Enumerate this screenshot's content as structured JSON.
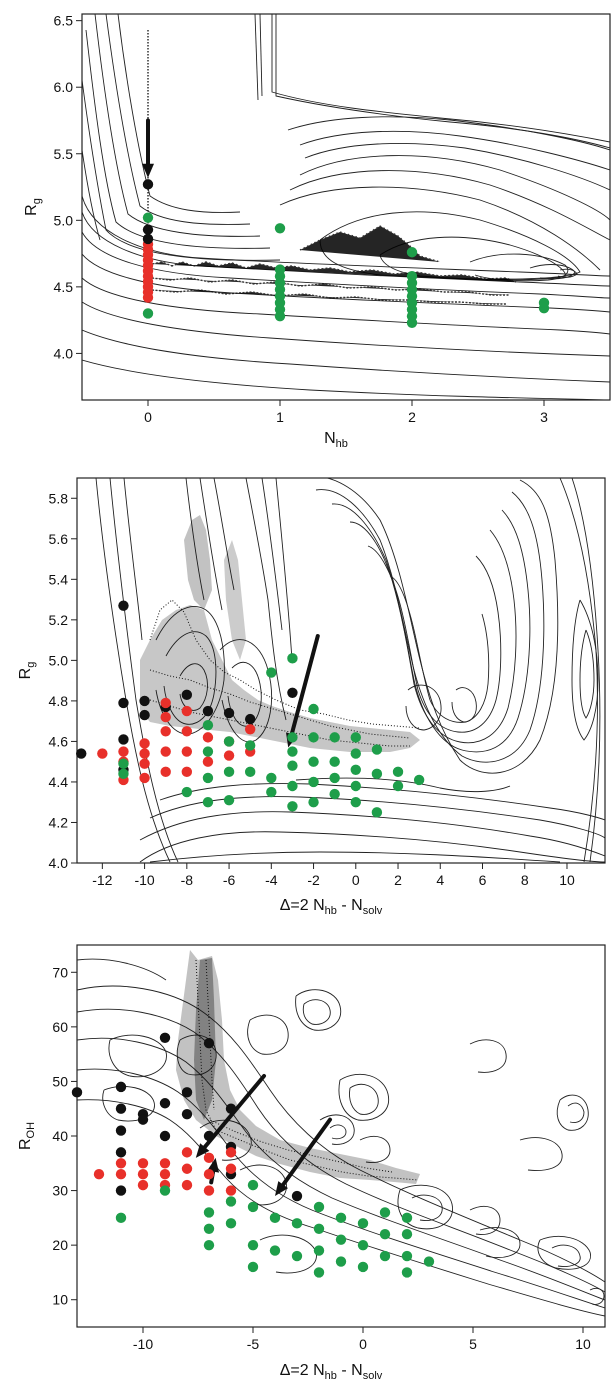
{
  "chart_data": [
    {
      "type": "scatter",
      "xlabel": "N",
      "xlabel_sub": "hb",
      "ylabel": "R",
      "ylabel_sub": "g",
      "xlim": [
        -0.5,
        3.5
      ],
      "ylim": [
        3.65,
        6.55
      ],
      "xticks": [
        0,
        1,
        2,
        3
      ],
      "yticks": [
        4.0,
        4.5,
        5.0,
        5.5,
        6.0,
        6.5
      ],
      "ytick_decimals": 1,
      "contours": "free-energy contour lines",
      "series": [
        {
          "color": "#e8302a",
          "points": [
            [
              0,
              4.42
            ],
            [
              0,
              4.46
            ],
            [
              0,
              4.5
            ],
            [
              0,
              4.54
            ],
            [
              0,
              4.58
            ],
            [
              0,
              4.62
            ],
            [
              0,
              4.66
            ],
            [
              0,
              4.7
            ],
            [
              0,
              4.74
            ],
            [
              0,
              4.78
            ],
            [
              0,
              4.82
            ]
          ]
        },
        {
          "color": "#1e9e4a",
          "points": [
            [
              0,
              5.02
            ],
            [
              0,
              4.3
            ],
            [
              1,
              4.94
            ],
            [
              1,
              4.28
            ],
            [
              1,
              4.33
            ],
            [
              1,
              4.38
            ],
            [
              1,
              4.43
            ],
            [
              1,
              4.48
            ],
            [
              1,
              4.53
            ],
            [
              1,
              4.58
            ],
            [
              1,
              4.63
            ],
            [
              2,
              4.76
            ],
            [
              2,
              4.23
            ],
            [
              2,
              4.28
            ],
            [
              2,
              4.33
            ],
            [
              2,
              4.38
            ],
            [
              2,
              4.43
            ],
            [
              2,
              4.48
            ],
            [
              2,
              4.53
            ],
            [
              2,
              4.58
            ],
            [
              3,
              4.34
            ],
            [
              3,
              4.38
            ]
          ]
        },
        {
          "color": "#111111",
          "points": [
            [
              0,
              5.27
            ],
            [
              0,
              4.93
            ],
            [
              0,
              4.86
            ]
          ]
        }
      ],
      "arrows": [
        {
          "from": [
            0,
            5.75
          ],
          "to": [
            0,
            5.32
          ]
        }
      ]
    },
    {
      "type": "scatter",
      "xlabel": "Δ=2  N",
      "xlabel_sub": "hb",
      "xlabel_mid": " - N",
      "xlabel_sub2": "solv",
      "ylabel": "R",
      "ylabel_sub": "g",
      "xlim": [
        -13.2,
        11.8
      ],
      "ylim": [
        4.0,
        5.9
      ],
      "xticks": [
        -12,
        -10,
        -8,
        -6,
        -4,
        -2,
        0,
        2,
        4,
        6,
        8,
        10
      ],
      "yticks": [
        4.0,
        4.2,
        4.4,
        4.6,
        4.8,
        5.0,
        5.2,
        5.4,
        5.6,
        5.8
      ],
      "ytick_decimals": 1,
      "contours": "free-energy contour lines",
      "series": [
        {
          "color": "#111111",
          "points": [
            [
              -13,
              4.54
            ],
            [
              -11,
              5.27
            ],
            [
              -11,
              4.61
            ],
            [
              -11,
              4.79
            ],
            [
              -11,
              4.46
            ],
            [
              -10,
              4.73
            ],
            [
              -10,
              4.8
            ],
            [
              -9,
              4.77
            ],
            [
              -8,
              4.83
            ],
            [
              -7,
              4.75
            ],
            [
              -6,
              4.74
            ],
            [
              -3,
              4.84
            ],
            [
              -5,
              4.71
            ]
          ]
        },
        {
          "color": "#e8302a",
          "points": [
            [
              -12,
              4.54
            ],
            [
              -11,
              4.41
            ],
            [
              -11,
              4.5
            ],
            [
              -11,
              4.55
            ],
            [
              -10,
              4.42
            ],
            [
              -10,
              4.49
            ],
            [
              -10,
              4.54
            ],
            [
              -10,
              4.59
            ],
            [
              -9,
              4.45
            ],
            [
              -9,
              4.55
            ],
            [
              -9,
              4.65
            ],
            [
              -9,
              4.72
            ],
            [
              -9,
              4.79
            ],
            [
              -8,
              4.45
            ],
            [
              -8,
              4.55
            ],
            [
              -8,
              4.65
            ],
            [
              -8,
              4.75
            ],
            [
              -7,
              4.5
            ],
            [
              -7,
              4.62
            ],
            [
              -6,
              4.53
            ],
            [
              -6,
              4.6
            ],
            [
              -5,
              4.55
            ],
            [
              -5,
              4.66
            ]
          ]
        },
        {
          "color": "#1e9e4a",
          "points": [
            [
              -11,
              4.49
            ],
            [
              -11,
              4.44
            ],
            [
              -8,
              4.35
            ],
            [
              -7,
              4.3
            ],
            [
              -7,
              4.42
            ],
            [
              -7,
              4.55
            ],
            [
              -7,
              4.68
            ],
            [
              -6,
              4.31
            ],
            [
              -6,
              4.45
            ],
            [
              -6,
              4.6
            ],
            [
              -5,
              4.45
            ],
            [
              -5,
              4.58
            ],
            [
              -4,
              4.94
            ],
            [
              -4,
              4.42
            ],
            [
              -4,
              4.35
            ],
            [
              -3,
              5.01
            ],
            [
              -3,
              4.28
            ],
            [
              -3,
              4.38
            ],
            [
              -3,
              4.48
            ],
            [
              -3,
              4.55
            ],
            [
              -3,
              4.62
            ],
            [
              -2,
              4.3
            ],
            [
              -2,
              4.4
            ],
            [
              -2,
              4.5
            ],
            [
              -2,
              4.62
            ],
            [
              -2,
              4.76
            ],
            [
              -1,
              4.34
            ],
            [
              -1,
              4.42
            ],
            [
              -1,
              4.5
            ],
            [
              -1,
              4.62
            ],
            [
              0,
              4.3
            ],
            [
              0,
              4.38
            ],
            [
              0,
              4.46
            ],
            [
              0,
              4.54
            ],
            [
              0,
              4.62
            ],
            [
              1,
              4.25
            ],
            [
              1,
              4.44
            ],
            [
              1,
              4.56
            ],
            [
              2,
              4.38
            ],
            [
              2,
              4.45
            ],
            [
              3,
              4.41
            ]
          ]
        }
      ],
      "arrows": [
        {
          "from": [
            -1.8,
            5.12
          ],
          "to": [
            -3.2,
            4.57
          ]
        }
      ]
    },
    {
      "type": "scatter",
      "xlabel": "Δ=2  N",
      "xlabel_sub": "hb",
      "xlabel_mid": " - N",
      "xlabel_sub2": "solv",
      "ylabel": "R",
      "ylabel_sub": "OH",
      "xlim": [
        -13,
        11
      ],
      "ylim": [
        5,
        75
      ],
      "xticks": [
        -10,
        -5,
        0,
        5,
        10
      ],
      "yticks": [
        10,
        20,
        30,
        40,
        50,
        60,
        70
      ],
      "ytick_decimals": 0,
      "contours": "free-energy contour lines",
      "series": [
        {
          "color": "#111111",
          "points": [
            [
              -13,
              48
            ],
            [
              -11,
              49
            ],
            [
              -11,
              45
            ],
            [
              -11,
              41
            ],
            [
              -11,
              37
            ],
            [
              -11,
              30
            ],
            [
              -10,
              44
            ],
            [
              -10,
              43
            ],
            [
              -9,
              58
            ],
            [
              -9,
              46
            ],
            [
              -9,
              40
            ],
            [
              -8,
              48
            ],
            [
              -8,
              44
            ],
            [
              -7,
              57
            ],
            [
              -7,
              40
            ],
            [
              -6,
              45
            ],
            [
              -6,
              38
            ],
            [
              -6,
              33
            ],
            [
              -3,
              29
            ]
          ]
        },
        {
          "color": "#e8302a",
          "points": [
            [
              -12,
              33
            ],
            [
              -11,
              35
            ],
            [
              -11,
              33
            ],
            [
              -10,
              35
            ],
            [
              -10,
              33
            ],
            [
              -10,
              31
            ],
            [
              -9,
              35
            ],
            [
              -9,
              33
            ],
            [
              -9,
              31
            ],
            [
              -8,
              37
            ],
            [
              -8,
              34
            ],
            [
              -8,
              31
            ],
            [
              -7,
              36
            ],
            [
              -7,
              33
            ],
            [
              -7,
              30
            ],
            [
              -6,
              37
            ],
            [
              -6,
              34
            ],
            [
              -6,
              30
            ]
          ]
        },
        {
          "color": "#1e9e4a",
          "points": [
            [
              -11,
              25
            ],
            [
              -9,
              30
            ],
            [
              -7,
              26
            ],
            [
              -7,
              23
            ],
            [
              -7,
              20
            ],
            [
              -6,
              28
            ],
            [
              -6,
              24
            ],
            [
              -5,
              31
            ],
            [
              -5,
              27
            ],
            [
              -5,
              20
            ],
            [
              -5,
              16
            ],
            [
              -4,
              25
            ],
            [
              -4,
              19
            ],
            [
              -3,
              24
            ],
            [
              -3,
              18
            ],
            [
              -2,
              27
            ],
            [
              -2,
              23
            ],
            [
              -2,
              19
            ],
            [
              -2,
              15
            ],
            [
              -1,
              25
            ],
            [
              -1,
              21
            ],
            [
              -1,
              17
            ],
            [
              0,
              24
            ],
            [
              0,
              20
            ],
            [
              0,
              16
            ],
            [
              1,
              26
            ],
            [
              1,
              22
            ],
            [
              1,
              18
            ],
            [
              2,
              25
            ],
            [
              2,
              22
            ],
            [
              2,
              18
            ],
            [
              2,
              15
            ],
            [
              3,
              17
            ]
          ]
        }
      ],
      "arrows": [
        {
          "from": [
            -6.9,
            31.5
          ],
          "to": [
            -6.7,
            36
          ]
        },
        {
          "from": [
            -4.5,
            51
          ],
          "to": [
            -7.6,
            36
          ]
        },
        {
          "from": [
            -1.5,
            43
          ],
          "to": [
            -4,
            29
          ]
        }
      ]
    }
  ]
}
